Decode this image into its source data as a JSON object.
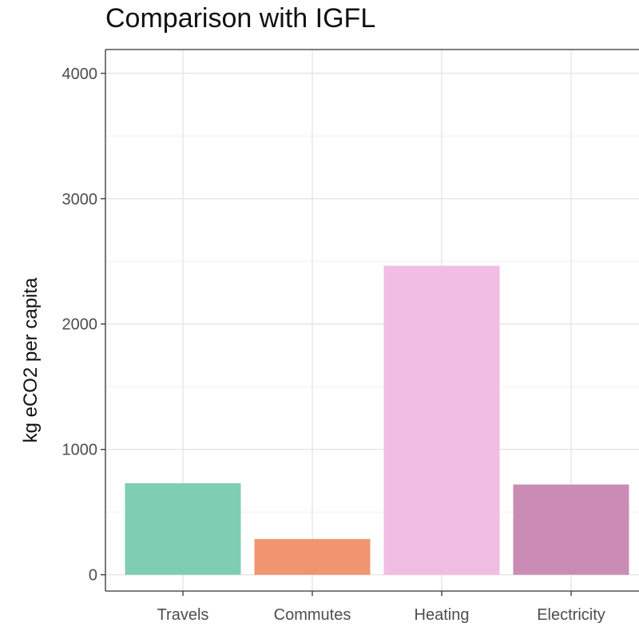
{
  "chart_data": {
    "type": "bar",
    "title": "Comparison with IGFL",
    "xlabel": "",
    "ylabel": "kg eCO2 per capita",
    "categories": [
      "Travels",
      "Commutes",
      "Heating",
      "Electricity"
    ],
    "values": [
      730,
      285,
      2465,
      720
    ],
    "colors": [
      "#7fcdb2",
      "#f0956f",
      "#f2bde3",
      "#ca8cb5"
    ],
    "ylim": [
      -130,
      4190
    ],
    "yticks": [
      0,
      1000,
      2000,
      3000,
      4000
    ],
    "grid": true,
    "legend": "none"
  }
}
